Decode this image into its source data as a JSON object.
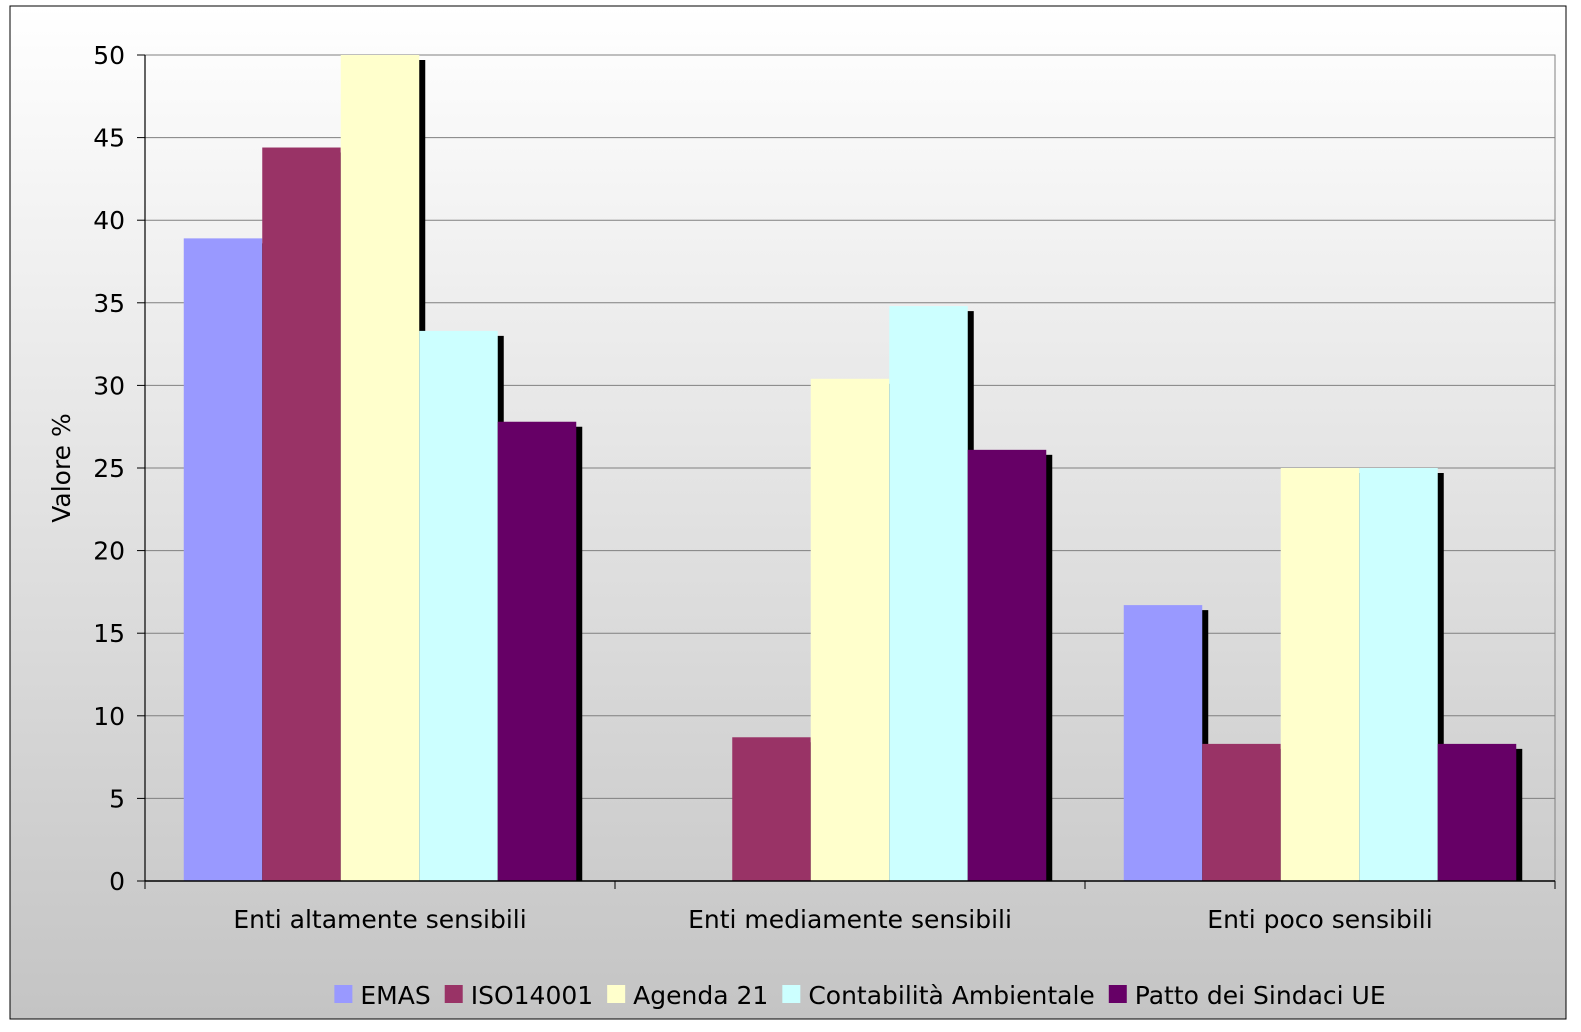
{
  "chart_data": {
    "type": "bar",
    "title": "",
    "xlabel": "",
    "ylabel": "Valore %",
    "ylim": [
      0,
      50
    ],
    "yticks": [
      0,
      5,
      10,
      15,
      20,
      25,
      30,
      35,
      40,
      45,
      50
    ],
    "grid": true,
    "legend_position": "bottom",
    "categories": [
      "Enti altamente sensibili",
      "Enti mediamente sensibili",
      "Enti poco sensibili"
    ],
    "series": [
      {
        "name": "EMAS",
        "color": "#9999ff",
        "values": [
          38.9,
          0,
          16.7
        ]
      },
      {
        "name": "ISO14001",
        "color": "#993366",
        "values": [
          44.4,
          8.7,
          8.3
        ]
      },
      {
        "name": "Agenda 21",
        "color": "#ffffcc",
        "values": [
          50.0,
          30.4,
          25.0
        ]
      },
      {
        "name": "Contabilità Ambientale",
        "color": "#ccffff",
        "values": [
          33.3,
          34.8,
          25.0
        ]
      },
      {
        "name": "Patto dei Sindaci UE",
        "color": "#660066",
        "values": [
          27.8,
          26.1,
          8.3
        ]
      }
    ]
  }
}
